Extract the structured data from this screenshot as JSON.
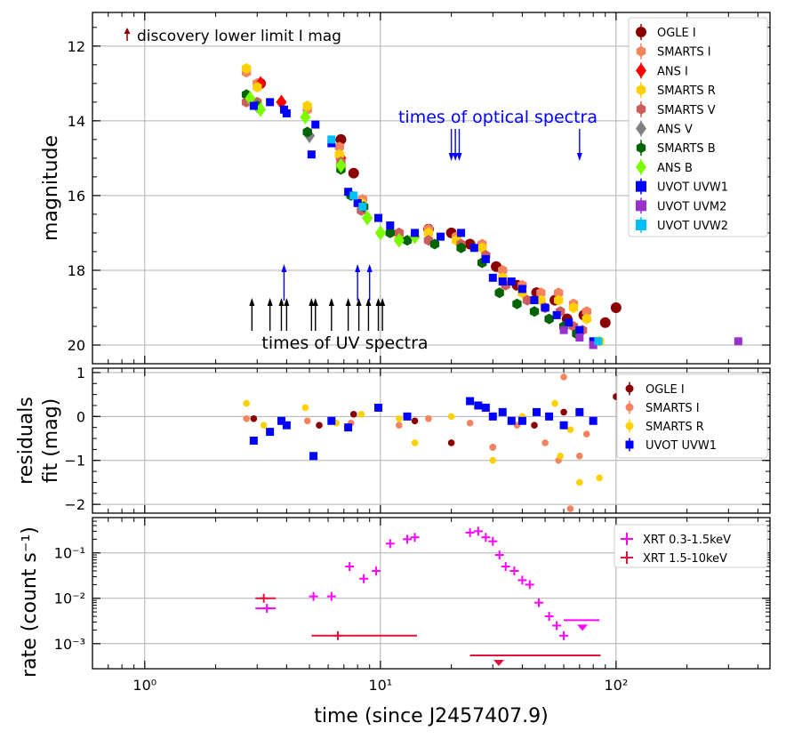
{
  "colors": {
    "ogle_i": "#8b0000",
    "smarts_i": "#f4845f",
    "ans_i": "#ff0000",
    "smarts_r": "#ffd000",
    "smarts_v": "#cd5c5c",
    "ans_v": "#808080",
    "smarts_b": "#006400",
    "ans_b": "#7cfc00",
    "uvot_uvw1": "#0000ff",
    "uvot_uvm2": "#9932cc",
    "uvot_uvw2": "#00bfff",
    "xrt_soft": "#ff00ff",
    "xrt_hard": "#dc143c",
    "annotation_blue": "#0000ff",
    "grid": "#b0b0b0"
  },
  "chart_data": [
    {
      "type": "scatter",
      "id": "magnitude",
      "xscale": "log",
      "xlim": [
        0.6,
        450
      ],
      "ylim": [
        20.5,
        11.1
      ],
      "ylabel": "magnitude",
      "ytick_labels": [
        "12",
        "14",
        "16",
        "18",
        "20"
      ],
      "ytick_values": [
        12,
        14,
        16,
        18,
        20
      ],
      "legend_position": "top-right",
      "legend": [
        "OGLE I",
        "SMARTS I",
        "ANS I",
        "SMARTS R",
        "SMARTS V",
        "ANS V",
        "SMARTS B",
        "ANS B",
        "UVOT UVW1",
        "UVOT UVM2",
        "UVOT UVW2"
      ],
      "annotations": {
        "discovery": "discovery lower limit I mag",
        "optical_spectra": "times of optical spectra",
        "uv_spectra": "times of UV spectra"
      },
      "optical_spectra_times": [
        20,
        20.8,
        21.6,
        70
      ],
      "uv_spectra_times": [
        2.85,
        3.4,
        3.8,
        4.0,
        5.1,
        5.3,
        6.2,
        7.3,
        8.1,
        8.9,
        9.8,
        10.2
      ],
      "uv_spectra_long_times": [
        3.9,
        8.0,
        9.0
      ],
      "series": [
        {
          "name": "OGLE I",
          "key": "ogle_i",
          "marker": "circle",
          "x": [
            3.1,
            6.8,
            7.7,
            16,
            20,
            24,
            31,
            38,
            46,
            55,
            62,
            73,
            90,
            100
          ],
          "y": [
            13.0,
            14.5,
            15.4,
            16.9,
            17.0,
            17.3,
            17.9,
            18.4,
            18.6,
            18.8,
            19.3,
            19.2,
            19.4,
            19.0
          ]
        },
        {
          "name": "SMARTS I",
          "key": "smarts_i",
          "marker": "hexagon",
          "x": [
            2.7,
            3.0,
            4.9,
            6.7,
            8.4,
            12,
            16,
            21,
            27,
            33,
            40,
            48,
            57,
            66,
            75
          ],
          "y": [
            12.7,
            13.0,
            13.7,
            14.7,
            16.1,
            17.0,
            16.9,
            17.1,
            17.3,
            18.0,
            18.4,
            18.6,
            18.6,
            18.9,
            19.1
          ]
        },
        {
          "name": "ANS I",
          "key": "ans_i",
          "marker": "diamond",
          "x": [
            3.1,
            3.8,
            6.8
          ],
          "y": [
            13.0,
            13.5,
            15.0
          ]
        },
        {
          "name": "SMARTS R",
          "key": "smarts_r",
          "marker": "hexagon",
          "x": [
            2.7,
            3.0,
            4.9,
            6.7,
            8.3,
            12,
            16,
            21,
            27,
            33,
            40,
            48,
            57,
            66,
            75,
            85
          ],
          "y": [
            12.6,
            13.1,
            13.6,
            14.9,
            16.2,
            17.1,
            17.0,
            17.2,
            17.4,
            18.2,
            18.6,
            18.8,
            18.8,
            19.0,
            19.3,
            19.9
          ]
        },
        {
          "name": "SMARTS V",
          "key": "smarts_v",
          "marker": "hexagon",
          "x": [
            2.7,
            3.0,
            4.9,
            6.8,
            8.3,
            12,
            16,
            22,
            28,
            34,
            42,
            50,
            58,
            66,
            72
          ],
          "y": [
            13.5,
            13.5,
            14.3,
            15.1,
            16.4,
            17.0,
            17.2,
            17.3,
            17.6,
            18.4,
            18.8,
            19.0,
            19.1,
            19.5,
            19.6
          ]
        },
        {
          "name": "ANS V",
          "key": "ans_v",
          "marker": "diamond",
          "x": [
            3.0,
            5.0,
            6.8,
            8.8
          ],
          "y": [
            13.6,
            14.4,
            15.2,
            16.6
          ]
        },
        {
          "name": "SMARTS B",
          "key": "smarts_b",
          "marker": "hexagon",
          "x": [
            2.7,
            3.0,
            4.9,
            6.8,
            7.5,
            8.5,
            11,
            13,
            17,
            22,
            27,
            32,
            38,
            45,
            52,
            60,
            68
          ],
          "y": [
            13.3,
            13.6,
            14.3,
            15.3,
            16.0,
            16.3,
            17.0,
            17.2,
            17.3,
            17.4,
            17.8,
            18.6,
            18.9,
            19.1,
            19.3,
            19.5,
            19.7
          ]
        },
        {
          "name": "ANS B",
          "key": "ans_b",
          "marker": "diamond",
          "x": [
            2.8,
            3.1,
            4.8,
            6.8,
            8.8,
            10,
            12,
            14
          ],
          "y": [
            13.4,
            13.7,
            13.9,
            15.2,
            16.6,
            17.0,
            17.2,
            17.1
          ]
        },
        {
          "name": "UVOT UVW1",
          "key": "uvot_uvw1",
          "marker": "square",
          "x": [
            2.9,
            3.4,
            3.9,
            4.0,
            5.1,
            5.3,
            6.2,
            7.3,
            8.0,
            9.8,
            11,
            14,
            18,
            22,
            25,
            28,
            30,
            33,
            36,
            40,
            45,
            50,
            56,
            63,
            70,
            80
          ],
          "y": [
            13.6,
            13.5,
            13.7,
            13.8,
            14.9,
            14.1,
            14.6,
            15.9,
            16.2,
            16.6,
            16.8,
            17.0,
            17.1,
            17.0,
            17.4,
            17.7,
            18.2,
            18.3,
            18.3,
            18.5,
            18.8,
            19.0,
            19.2,
            19.4,
            19.6,
            19.9
          ]
        },
        {
          "name": "UVOT UVM2",
          "key": "uvot_uvm2",
          "marker": "square",
          "x": [
            60,
            70,
            80,
            330
          ],
          "y": [
            19.6,
            19.8,
            20.0,
            19.9
          ]
        },
        {
          "name": "UVOT UVW2",
          "key": "uvot_uvw2",
          "marker": "square",
          "x": [
            6.2,
            7.7,
            8.4,
            84
          ],
          "y": [
            14.5,
            16.0,
            16.3,
            19.9
          ]
        }
      ]
    },
    {
      "type": "scatter",
      "id": "residuals",
      "xscale": "log",
      "xlim": [
        0.6,
        450
      ],
      "ylim": [
        -2.2,
        1.1
      ],
      "ylabel": "residuals",
      "ylabel2": "fit (mag)",
      "ytick_labels": [
        "1",
        "0",
        "−1",
        "−2"
      ],
      "ytick_values": [
        1,
        0,
        -1,
        -2
      ],
      "legend_position": "top-right",
      "legend": [
        "OGLE I",
        "SMARTS I",
        "SMARTS R",
        "UVOT UVW1"
      ],
      "series": [
        {
          "name": "OGLE I",
          "key": "ogle_i",
          "marker": "circle",
          "x": [
            2.9,
            5.5,
            7.7,
            14,
            20,
            30,
            45,
            60,
            100
          ],
          "y": [
            -0.05,
            -0.2,
            0.05,
            -0.1,
            -0.6,
            -0.7,
            -0.2,
            0.1,
            0.45
          ]
        },
        {
          "name": "SMARTS I",
          "key": "smarts_i",
          "marker": "circle",
          "x": [
            2.7,
            4.9,
            7.5,
            12,
            16,
            24,
            30,
            38,
            50,
            57,
            60,
            64,
            70,
            75
          ],
          "y": [
            -0.05,
            -0.1,
            -0.15,
            -0.2,
            -0.05,
            -0.15,
            -0.7,
            -0.2,
            -0.6,
            -1.0,
            0.9,
            -2.1,
            -0.9,
            -0.4
          ]
        },
        {
          "name": "SMARTS R",
          "key": "smarts_r",
          "marker": "circle",
          "x": [
            2.7,
            3.2,
            4.8,
            6.5,
            8.3,
            12,
            14,
            20,
            30,
            40,
            55,
            58,
            64,
            70,
            85
          ],
          "y": [
            0.3,
            -0.2,
            0.2,
            -0.15,
            0.05,
            -0.05,
            -0.6,
            0.0,
            -1.0,
            0.0,
            0.3,
            -0.9,
            -0.3,
            -1.5,
            -1.4
          ]
        },
        {
          "name": "UVOT UVW1",
          "key": "uvot_uvw1",
          "marker": "square",
          "x": [
            2.9,
            3.4,
            3.8,
            4.0,
            5.2,
            6.2,
            7.3,
            9.8,
            13,
            24,
            26,
            28,
            30,
            33,
            36,
            40,
            46,
            52,
            60,
            70,
            80
          ],
          "y": [
            -0.55,
            -0.35,
            -0.1,
            -0.2,
            -0.9,
            -0.1,
            -0.25,
            0.2,
            0.0,
            0.35,
            0.25,
            0.2,
            0.0,
            0.1,
            -0.1,
            -0.1,
            0.1,
            0.0,
            -0.2,
            0.1,
            -0.1
          ]
        }
      ]
    },
    {
      "type": "scatter",
      "id": "xrt",
      "xscale": "log",
      "yscale": "log",
      "xlim": [
        0.6,
        450
      ],
      "ylim": [
        0.00028,
        0.6
      ],
      "ylabel": "rate (count s⁻¹)",
      "ytick_labels": [
        "10⁻¹",
        "10⁻²",
        "10⁻³"
      ],
      "ytick_values": [
        0.1,
        0.01,
        0.001
      ],
      "xtick_labels": [
        "10⁰",
        "10¹",
        "10²"
      ],
      "xtick_values": [
        1,
        10,
        100
      ],
      "xlabel": "time (since J2457407.9)",
      "legend_position": "top-right",
      "legend": [
        "XRT 0.3-1.5keV",
        "XRT 1.5-10keV"
      ],
      "series": [
        {
          "name": "XRT 0.3-1.5keV",
          "key": "xrt_soft",
          "marker": "plus",
          "x": [
            3.3,
            5.2,
            6.2,
            7.4,
            8.5,
            9.6,
            11,
            13,
            14,
            24,
            26,
            28,
            30,
            32,
            34,
            37,
            40,
            43,
            47,
            52,
            56,
            60
          ],
          "y": [
            0.006,
            0.011,
            0.011,
            0.05,
            0.027,
            0.04,
            0.16,
            0.2,
            0.22,
            0.28,
            0.3,
            0.22,
            0.18,
            0.09,
            0.05,
            0.04,
            0.025,
            0.02,
            0.008,
            0.004,
            0.0025,
            0.0015
          ]
        },
        {
          "name": "XRT 1.5-10keV",
          "key": "xrt_hard",
          "marker": "plus",
          "x": [
            3.2,
            6.6
          ],
          "y": [
            0.01,
            0.0015
          ]
        }
      ],
      "upper_limits": [
        {
          "key": "xrt_hard",
          "x": 31.8,
          "y": 0.00055,
          "xerr": [
            24,
            86
          ]
        },
        {
          "key": "xrt_soft",
          "x": 72,
          "y": 0.0033,
          "xerr": [
            60,
            85
          ]
        }
      ]
    }
  ]
}
